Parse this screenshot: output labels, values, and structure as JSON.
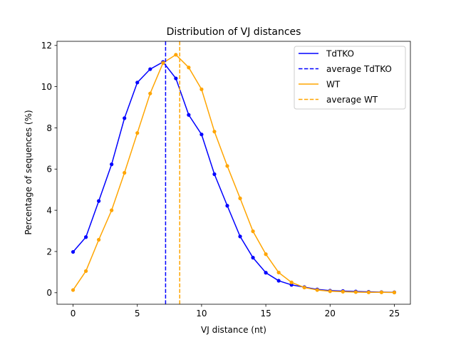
{
  "chart_data": {
    "type": "line",
    "title": "Distribution of VJ distances",
    "xlabel": "VJ distance (nt)",
    "ylabel": "Percentage of sequences (%)",
    "xlim": [
      -1.25,
      26.25
    ],
    "ylim": [
      -0.56,
      12.2
    ],
    "xticks": [
      0,
      5,
      10,
      15,
      20,
      25
    ],
    "yticks": [
      0,
      2,
      4,
      6,
      8,
      10,
      12
    ],
    "legend_position": "top-right",
    "x": [
      0,
      1,
      2,
      3,
      4,
      5,
      6,
      7,
      8,
      9,
      10,
      11,
      12,
      13,
      14,
      15,
      16,
      17,
      18,
      19,
      20,
      21,
      22,
      23,
      24,
      25
    ],
    "series": [
      {
        "name": "TdTKO",
        "color": "#0000ff",
        "values": [
          1.98,
          2.7,
          4.45,
          6.23,
          8.47,
          10.2,
          10.85,
          11.2,
          10.4,
          8.63,
          7.68,
          5.75,
          4.22,
          2.73,
          1.7,
          0.97,
          0.58,
          0.38,
          0.27,
          0.16,
          0.1,
          0.08,
          0.06,
          0.04,
          0.03,
          0.02
        ]
      },
      {
        "name": "WT",
        "color": "#ffa500",
        "values": [
          0.13,
          1.05,
          2.57,
          4.0,
          5.82,
          7.75,
          9.67,
          11.15,
          11.55,
          10.93,
          9.87,
          7.82,
          6.15,
          4.58,
          2.98,
          1.87,
          0.98,
          0.5,
          0.25,
          0.13,
          0.07,
          0.05,
          0.03,
          0.02,
          0.02,
          0.01
        ]
      }
    ],
    "averages": [
      {
        "name": "average TdTKO",
        "color": "#0000ff",
        "x": 7.2
      },
      {
        "name": "average WT",
        "color": "#ffa500",
        "x": 8.3
      }
    ]
  }
}
